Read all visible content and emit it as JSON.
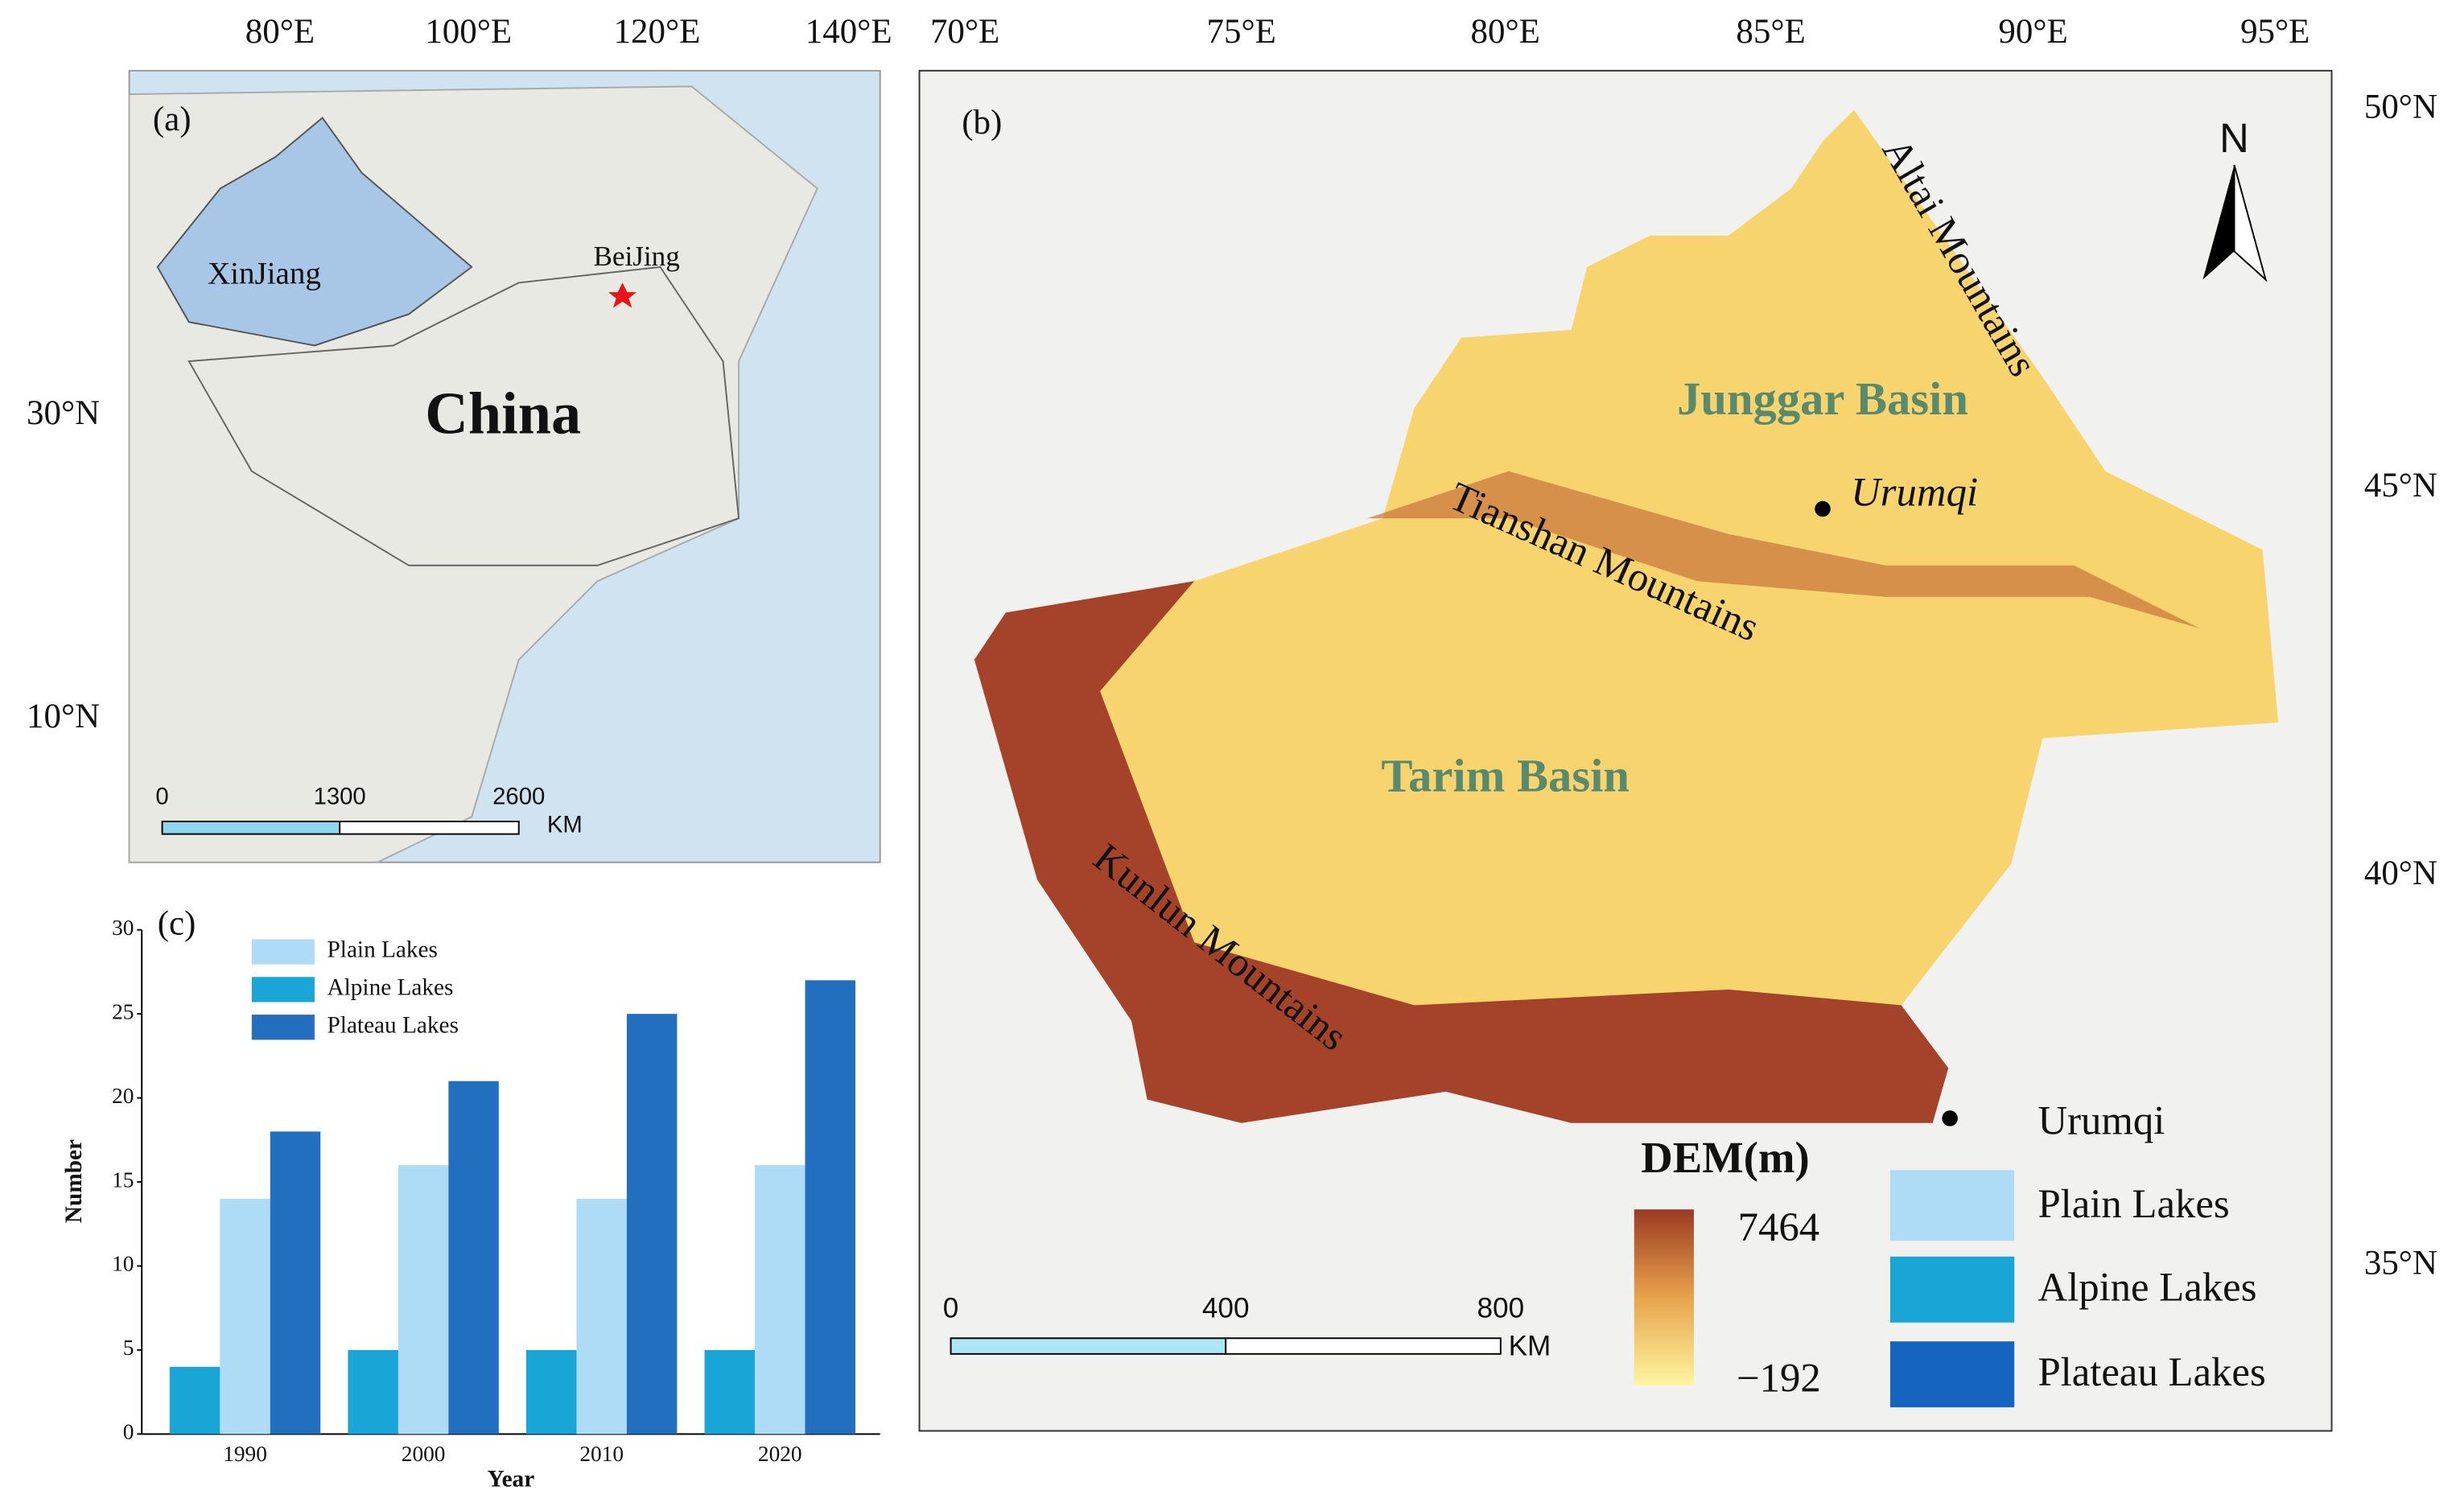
{
  "map_a": {
    "panel": "(a)",
    "xticks": [
      "80°E",
      "100°E",
      "120°E",
      "140°E"
    ],
    "yticks": [
      "30°N",
      "10°N"
    ],
    "labels": {
      "region": "XinJiang",
      "capital": "BeiJing",
      "country": "China"
    },
    "scale": [
      "0",
      "1300",
      "2600",
      "KM"
    ]
  },
  "map_b": {
    "panel": "(b)",
    "xticks": [
      "70°E",
      "75°E",
      "80°E",
      "85°E",
      "90°E",
      "95°E"
    ],
    "yticks": [
      "50°N",
      "45°N",
      "40°N",
      "35°N"
    ],
    "labels": {
      "altai": "Altai Mountains",
      "junggar": "Junggar Basin",
      "city": "Urumqi",
      "tianshan": "Tianshan Mountains",
      "tarim": "Tarim Basin",
      "kunlun": "Kunlun Mountains"
    },
    "north": "N",
    "scale": [
      "0",
      "400",
      "800",
      "KM"
    ],
    "dem": {
      "title": "DEM(m)",
      "max": "7464",
      "min": "−192"
    },
    "legend": [
      "Urumqi",
      "Plain Lakes",
      "Alpine Lakes",
      "Plateau Lakes"
    ]
  },
  "chart_data": {
    "type": "bar",
    "panel": "(c)",
    "x_label": "Year",
    "y_label": "Number",
    "categories": [
      "1990",
      "2000",
      "2010",
      "2020"
    ],
    "series": [
      {
        "name": "Plain Lakes",
        "color": "#aedcf6",
        "values": [
          14,
          16,
          14,
          16
        ]
      },
      {
        "name": "Alpine Lakes",
        "color": "#19a5d6",
        "values": [
          4,
          5,
          5,
          5
        ]
      },
      {
        "name": "Plateau Lakes",
        "color": "#226fc0",
        "values": [
          18,
          21,
          25,
          27
        ]
      }
    ],
    "ylim": [
      0,
      30
    ],
    "yticks": [
      0,
      5,
      10,
      15,
      20,
      25,
      30
    ],
    "grid": false
  }
}
